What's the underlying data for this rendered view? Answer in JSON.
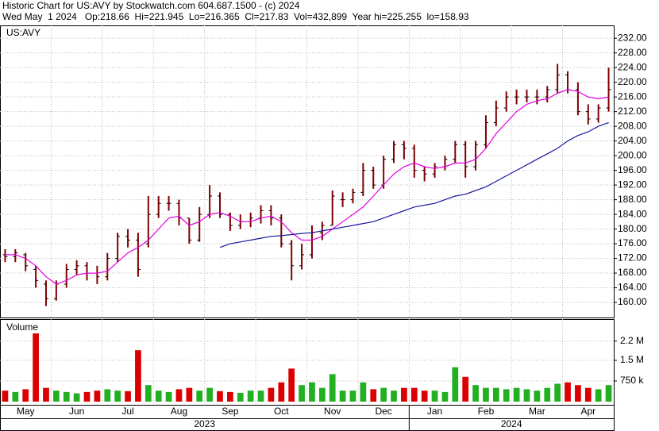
{
  "chart_data": {
    "type": "ohlc",
    "header": [
      "Historic Chart for US:AVY by Stockwatch.com 604.687.1500 - (c) 2024",
      "Wed May  1 2024   Op:218.66  Hi=221.945  Lo=216.365  Cl=217.83  Vol=432,899  Year hi=225.255  lo=158.93"
    ],
    "symbol": "US:AVY",
    "volume_title": "Volume",
    "bar_color": "#800000",
    "tick_color": "#000000",
    "up_color": "#22b022",
    "down_color": "#dd0000",
    "ma_short_color": "#e000e0",
    "ma_long_color": "#1a1aa0",
    "grid": true,
    "ylim": [
      155.9,
      235.5
    ],
    "yticks": [
      {
        "value": 160,
        "label": "160.00"
      },
      {
        "value": 164,
        "label": "164.00"
      },
      {
        "value": 168,
        "label": "168.00"
      },
      {
        "value": 172,
        "label": "172.00"
      },
      {
        "value": 176,
        "label": "176.00"
      },
      {
        "value": 180,
        "label": "180.00"
      },
      {
        "value": 184,
        "label": "184.00"
      },
      {
        "value": 188,
        "label": "188.00"
      },
      {
        "value": 192,
        "label": "192.00"
      },
      {
        "value": 196,
        "label": "196.00"
      },
      {
        "value": 200,
        "label": "200.00"
      },
      {
        "value": 204,
        "label": "204.00"
      },
      {
        "value": 208,
        "label": "208.00"
      },
      {
        "value": 212,
        "label": "212.00"
      },
      {
        "value": 216,
        "label": "216.00"
      },
      {
        "value": 220,
        "label": "220.00"
      },
      {
        "value": 224,
        "label": "224.00"
      },
      {
        "value": 228,
        "label": "228.00"
      },
      {
        "value": 232,
        "label": "232.00"
      }
    ],
    "volume_ylim": [
      0,
      3000000
    ],
    "volume_yticks": [
      {
        "value": 750000,
        "label": "750 k"
      },
      {
        "value": 1500000,
        "label": "1.5 M"
      },
      {
        "value": 2200000,
        "label": "2.2 M"
      }
    ],
    "years": [
      {
        "label": "2023",
        "months": [
          {
            "label": "May",
            "open": [
              173,
              172.5,
              173,
              169,
              165
            ],
            "high": [
              174.5,
              174.5,
              173.5,
              170,
              166
            ],
            "low": [
              171,
              171,
              168.5,
              164,
              159
            ],
            "close": [
              172.5,
              173.5,
              170,
              166,
              161
            ],
            "volume": [
              400000,
              350000,
              450000,
              2480000,
              500000
            ],
            "ma_short": [
              173,
              173,
              172,
              170,
              167
            ],
            "ma_long": [
              null,
              null,
              null,
              null,
              null
            ]
          },
          {
            "label": "Jun",
            "open": [
              161,
              165,
              169,
              170,
              168
            ],
            "high": [
              166,
              170.5,
              171.5,
              171,
              170
            ],
            "low": [
              160.5,
              164,
              167.5,
              166,
              165
            ],
            "close": [
              165,
              169,
              170,
              168,
              167
            ],
            "volume": [
              400000,
              350000,
              300000,
              350000,
              400000
            ],
            "ma_short": [
              165,
              166,
              167.5,
              168,
              168
            ],
            "ma_long": [
              null,
              null,
              null,
              null,
              null
            ]
          },
          {
            "label": "Jul",
            "open": [
              167,
              172,
              178,
              177,
              176
            ],
            "high": [
              173.5,
              179,
              180,
              179,
              189
            ],
            "low": [
              166,
              171,
              175,
              167,
              175
            ],
            "close": [
              172,
              178,
              177,
              169,
              184
            ],
            "volume": [
              450000,
              400000,
              380000,
              1870000,
              600000
            ],
            "ma_short": [
              168.5,
              171,
              173.5,
              175,
              177
            ],
            "ma_long": [
              null,
              null,
              null,
              null,
              null
            ]
          },
          {
            "label": "Aug",
            "open": [
              184,
              187,
              187,
              183,
              177
            ],
            "high": [
              189,
              189,
              188,
              183,
              186
            ],
            "low": [
              183,
              185,
              181,
              176,
              176.5
            ],
            "close": [
              187,
              187,
              183,
              177,
              184
            ],
            "volume": [
              400000,
              350000,
              450000,
              500000,
              400000
            ],
            "ma_short": [
              180,
              183,
              183.5,
              181,
              182
            ],
            "ma_long": [
              null,
              null,
              null,
              null,
              null
            ]
          },
          {
            "label": "Sep",
            "open": [
              184,
              189,
              184,
              181,
              182
            ],
            "high": [
              192,
              190,
              184.5,
              184,
              184.5
            ],
            "low": [
              183,
              183,
              179.5,
              180,
              180.5
            ],
            "close": [
              189,
              184,
              181,
              182,
              183
            ],
            "volume": [
              500000,
              380000,
              350000,
              320000,
              400000
            ],
            "ma_short": [
              184,
              184.5,
              183.5,
              182,
              182
            ],
            "ma_long": [
              null,
              175,
              176,
              176.5,
              177
            ]
          },
          {
            "label": "Oct",
            "open": [
              183,
              185,
              183,
              176,
              170
            ],
            "high": [
              186.5,
              186.5,
              184,
              177,
              176
            ],
            "low": [
              181.5,
              181,
              175,
              166,
              169
            ],
            "close": [
              185,
              183,
              176,
              170,
              173
            ],
            "volume": [
              400000,
              500000,
              700000,
              1200000,
              600000
            ],
            "ma_short": [
              183,
              183.5,
              182,
              179,
              177
            ],
            "ma_long": [
              177.5,
              178,
              178.2,
              178.5,
              178.8
            ]
          },
          {
            "label": "Nov",
            "open": [
              173,
              179,
              181,
              188,
              188
            ],
            "high": [
              181,
              182,
              190.5,
              190,
              191
            ],
            "low": [
              172,
              177,
              181,
              186,
              187
            ],
            "close": [
              179,
              181,
              189,
              188,
              190
            ],
            "volume": [
              700000,
              500000,
              1000000,
              400000,
              400000
            ],
            "ma_short": [
              177,
              178,
              180,
              182,
              184
            ],
            "ma_long": [
              179,
              179.5,
              180,
              180.5,
              181
            ]
          },
          {
            "label": "Dec",
            "open": [
              190,
              196,
              192,
              199,
              203
            ],
            "high": [
              198,
              197,
              200,
              204,
              204
            ],
            "low": [
              189,
              191,
              191,
              198,
              199
            ],
            "close": [
              196,
              192,
              199,
              203,
              202
            ],
            "volume": [
              700000,
              450000,
              500000,
              400000,
              500000
            ],
            "ma_short": [
              186,
              189,
              192,
              195,
              197
            ],
            "ma_long": [
              181.5,
              182,
              183,
              184,
              185
            ]
          }
        ]
      },
      {
        "label": "2024",
        "months": [
          {
            "label": "Jan",
            "open": [
              202,
              196,
              195,
              197,
              199
            ],
            "high": [
              203,
              197,
              198,
              200,
              204
            ],
            "low": [
              194,
              193,
              194,
              196,
              198
            ],
            "close": [
              196,
              195,
              197,
              199,
              203
            ],
            "volume": [
              500000,
              400000,
              400000,
              350000,
              1250000
            ],
            "ma_short": [
              198,
              197,
              196.5,
              197,
              198
            ],
            "ma_long": [
              186,
              186.5,
              187,
              188,
              189
            ]
          },
          {
            "label": "Feb",
            "open": [
              203,
              197,
              203,
              209,
              213
            ],
            "high": [
              204,
              204,
              211,
              215,
              217.5
            ],
            "low": [
              194,
              196,
              202,
              208,
              212
            ],
            "close": [
              197,
              203,
              209,
              213,
              216
            ],
            "volume": [
              900000,
              600000,
              500000,
              500000,
              450000
            ],
            "ma_short": [
              198,
              199,
              202,
              206,
              209
            ],
            "ma_long": [
              189.5,
              190.5,
              191.5,
              193,
              194.5
            ]
          },
          {
            "label": "Mar",
            "open": [
              216,
              216,
              216,
              216,
              218
            ],
            "high": [
              218,
              218,
              218,
              219,
              225
            ],
            "low": [
              214,
              214.5,
              214,
              214.5,
              217
            ],
            "close": [
              216,
              216,
              216,
              218,
              222
            ],
            "volume": [
              500000,
              450000,
              400000,
              500000,
              650000
            ],
            "ma_short": [
              212,
              214,
              215,
              215.5,
              217
            ],
            "ma_long": [
              196,
              197.5,
              199,
              200.5,
              202
            ]
          },
          {
            "label": "Apr",
            "open": [
              222,
              218,
              212,
              210,
              213
            ],
            "high": [
              223,
              220,
              214,
              214,
              224
            ],
            "low": [
              217,
              211,
              208.5,
              209,
              212
            ],
            "close": [
              218,
              212,
              210,
              213,
              218
            ],
            "volume": [
              700000,
              600000,
              500000,
              450000,
              600000
            ],
            "ma_short": [
              218,
              217.5,
              216,
              215.5,
              216
            ],
            "ma_long": [
              204,
              205.5,
              206.5,
              208,
              209
            ]
          }
        ]
      }
    ]
  }
}
